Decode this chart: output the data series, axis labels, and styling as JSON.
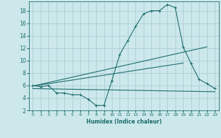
{
  "xlabel": "Humidex (Indice chaleur)",
  "bg_color": "#cce8eb",
  "grid_color": "#b0d0d8",
  "line_color": "#1a6b6b",
  "xlim": [
    -0.5,
    23.5
  ],
  "ylim": [
    2,
    19.5
  ],
  "yticks": [
    2,
    4,
    6,
    8,
    10,
    12,
    14,
    16,
    18
  ],
  "xticks": [
    0,
    1,
    2,
    3,
    4,
    5,
    6,
    7,
    8,
    9,
    10,
    11,
    12,
    13,
    14,
    15,
    16,
    17,
    18,
    19,
    20,
    21,
    22,
    23
  ],
  "line1_x": [
    0,
    1,
    2,
    3,
    4,
    5,
    6,
    7,
    8,
    9,
    10,
    11,
    12,
    13,
    14,
    15,
    16,
    17,
    18,
    19,
    20,
    21,
    22,
    23
  ],
  "line1_y": [
    6.0,
    5.8,
    6.0,
    4.8,
    4.8,
    4.5,
    4.5,
    3.8,
    2.8,
    2.8,
    6.8,
    11.0,
    13.2,
    15.5,
    17.5,
    18.0,
    18.0,
    19.0,
    18.5,
    12.2,
    9.5,
    7.0,
    6.3,
    5.5
  ],
  "line2_x": [
    0,
    22
  ],
  "line2_y": [
    5.9,
    12.2
  ],
  "line3_x": [
    0,
    23
  ],
  "line3_y": [
    5.5,
    5.0
  ],
  "line4_x": [
    0,
    19
  ],
  "line4_y": [
    5.9,
    9.6
  ]
}
